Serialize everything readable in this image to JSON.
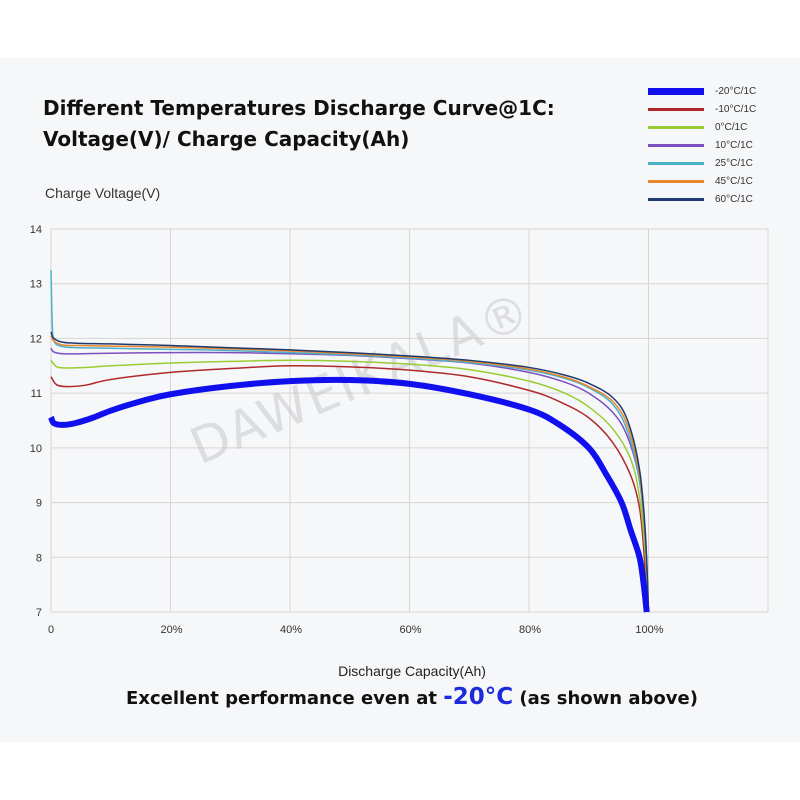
{
  "title_lines": [
    "Different Temperatures Discharge Curve@1C:",
    "Voltage(V)/ Charge Capacity(Ah)"
  ],
  "watermark": "DAWEIKALA®",
  "caption": {
    "prefix": "Excellent performance even at ",
    "highlight": "-20°C",
    "suffix": " (as shown above)"
  },
  "colors": {
    "caption_highlight": "#1d2bdc",
    "panel_background": "#f6f7f9",
    "grid": "#d5d5d5"
  },
  "chart_data": {
    "type": "line",
    "title": "Different Temperatures Discharge Curve@1C: Voltage(V)/ Charge Capacity(Ah)",
    "xlabel": "Discharge Capacity(Ah)",
    "ylabel": "Charge Voltage(V)",
    "xlim": [
      0,
      1.2
    ],
    "ylim": [
      7,
      14
    ],
    "x_ticks": [
      0,
      0.2,
      0.4,
      0.6,
      0.8,
      1.0
    ],
    "x_tick_labels": [
      "0",
      "20%",
      "40%",
      "60%",
      "80%",
      "100%"
    ],
    "y_ticks": [
      7,
      8,
      9,
      10,
      11,
      12,
      13,
      14
    ],
    "grid": true,
    "legend_position": "top-right",
    "series": [
      {
        "name": "-20°C/1C",
        "color": "#1010ee",
        "width": 6,
        "points": [
          [
            0,
            10.56
          ],
          [
            0.005,
            10.45
          ],
          [
            0.02,
            10.42
          ],
          [
            0.04,
            10.45
          ],
          [
            0.07,
            10.55
          ],
          [
            0.1,
            10.68
          ],
          [
            0.15,
            10.85
          ],
          [
            0.2,
            10.98
          ],
          [
            0.3,
            11.13
          ],
          [
            0.4,
            11.22
          ],
          [
            0.5,
            11.24
          ],
          [
            0.6,
            11.17
          ],
          [
            0.7,
            10.98
          ],
          [
            0.8,
            10.7
          ],
          [
            0.85,
            10.43
          ],
          [
            0.9,
            10.0
          ],
          [
            0.93,
            9.5
          ],
          [
            0.955,
            9.0
          ],
          [
            0.97,
            8.5
          ],
          [
            0.985,
            8.0
          ],
          [
            0.992,
            7.5
          ],
          [
            0.997,
            7.0
          ]
        ]
      },
      {
        "name": "-10°C/1C",
        "color": "#b0282c",
        "width": 1.5,
        "points": [
          [
            0,
            11.3
          ],
          [
            0.01,
            11.15
          ],
          [
            0.03,
            11.12
          ],
          [
            0.06,
            11.15
          ],
          [
            0.1,
            11.25
          ],
          [
            0.2,
            11.38
          ],
          [
            0.3,
            11.45
          ],
          [
            0.4,
            11.5
          ],
          [
            0.5,
            11.48
          ],
          [
            0.6,
            11.42
          ],
          [
            0.7,
            11.3
          ],
          [
            0.8,
            11.05
          ],
          [
            0.85,
            10.85
          ],
          [
            0.9,
            10.55
          ],
          [
            0.94,
            10.1
          ],
          [
            0.97,
            9.5
          ],
          [
            0.985,
            8.9
          ],
          [
            0.993,
            8.0
          ],
          [
            0.997,
            7.0
          ]
        ]
      },
      {
        "name": "0°C/1C",
        "color": "#99cc33",
        "width": 1.5,
        "points": [
          [
            0,
            11.6
          ],
          [
            0.01,
            11.48
          ],
          [
            0.03,
            11.46
          ],
          [
            0.06,
            11.47
          ],
          [
            0.1,
            11.5
          ],
          [
            0.2,
            11.55
          ],
          [
            0.3,
            11.58
          ],
          [
            0.4,
            11.6
          ],
          [
            0.5,
            11.58
          ],
          [
            0.6,
            11.53
          ],
          [
            0.7,
            11.43
          ],
          [
            0.8,
            11.22
          ],
          [
            0.86,
            11.0
          ],
          [
            0.9,
            10.75
          ],
          [
            0.94,
            10.35
          ],
          [
            0.97,
            9.8
          ],
          [
            0.985,
            9.1
          ],
          [
            0.995,
            8.0
          ],
          [
            1.0,
            7.0
          ]
        ]
      },
      {
        "name": "10°C/1C",
        "color": "#7a4fbf",
        "width": 1.5,
        "points": [
          [
            0,
            11.82
          ],
          [
            0.005,
            11.75
          ],
          [
            0.02,
            11.72
          ],
          [
            0.05,
            11.72
          ],
          [
            0.1,
            11.73
          ],
          [
            0.2,
            11.74
          ],
          [
            0.3,
            11.74
          ],
          [
            0.4,
            11.72
          ],
          [
            0.5,
            11.69
          ],
          [
            0.6,
            11.63
          ],
          [
            0.7,
            11.55
          ],
          [
            0.8,
            11.38
          ],
          [
            0.86,
            11.2
          ],
          [
            0.9,
            11.0
          ],
          [
            0.94,
            10.65
          ],
          [
            0.965,
            10.2
          ],
          [
            0.985,
            9.4
          ],
          [
            0.995,
            8.3
          ],
          [
            1.0,
            7.0
          ]
        ]
      },
      {
        "name": "25°C/1C",
        "color": "#4cb0c8",
        "width": 1.5,
        "points": [
          [
            0,
            13.25
          ],
          [
            0.002,
            12.3
          ],
          [
            0.005,
            11.95
          ],
          [
            0.02,
            11.85
          ],
          [
            0.05,
            11.83
          ],
          [
            0.1,
            11.82
          ],
          [
            0.2,
            11.8
          ],
          [
            0.3,
            11.78
          ],
          [
            0.4,
            11.74
          ],
          [
            0.5,
            11.7
          ],
          [
            0.6,
            11.64
          ],
          [
            0.7,
            11.56
          ],
          [
            0.8,
            11.42
          ],
          [
            0.86,
            11.27
          ],
          [
            0.9,
            11.1
          ],
          [
            0.94,
            10.8
          ],
          [
            0.965,
            10.3
          ],
          [
            0.985,
            9.4
          ],
          [
            0.995,
            8.2
          ],
          [
            1.0,
            7.0
          ]
        ]
      },
      {
        "name": "45°C/1C",
        "color": "#e8862a",
        "width": 1.5,
        "points": [
          [
            0,
            12.05
          ],
          [
            0.005,
            11.95
          ],
          [
            0.02,
            11.88
          ],
          [
            0.05,
            11.87
          ],
          [
            0.1,
            11.86
          ],
          [
            0.2,
            11.84
          ],
          [
            0.3,
            11.81
          ],
          [
            0.4,
            11.77
          ],
          [
            0.5,
            11.72
          ],
          [
            0.6,
            11.66
          ],
          [
            0.7,
            11.58
          ],
          [
            0.8,
            11.44
          ],
          [
            0.86,
            11.29
          ],
          [
            0.9,
            11.12
          ],
          [
            0.94,
            10.85
          ],
          [
            0.965,
            10.4
          ],
          [
            0.985,
            9.5
          ],
          [
            0.995,
            8.3
          ],
          [
            1.0,
            7.0
          ]
        ]
      },
      {
        "name": "60°C/1C",
        "color": "#1e3a6e",
        "width": 1.5,
        "points": [
          [
            0,
            12.12
          ],
          [
            0.005,
            12.0
          ],
          [
            0.02,
            11.93
          ],
          [
            0.05,
            11.91
          ],
          [
            0.1,
            11.9
          ],
          [
            0.2,
            11.87
          ],
          [
            0.3,
            11.83
          ],
          [
            0.4,
            11.79
          ],
          [
            0.5,
            11.74
          ],
          [
            0.6,
            11.68
          ],
          [
            0.7,
            11.6
          ],
          [
            0.8,
            11.47
          ],
          [
            0.86,
            11.33
          ],
          [
            0.9,
            11.18
          ],
          [
            0.94,
            10.92
          ],
          [
            0.965,
            10.5
          ],
          [
            0.985,
            9.6
          ],
          [
            0.995,
            8.4
          ],
          [
            1.0,
            7.0
          ]
        ]
      }
    ]
  }
}
